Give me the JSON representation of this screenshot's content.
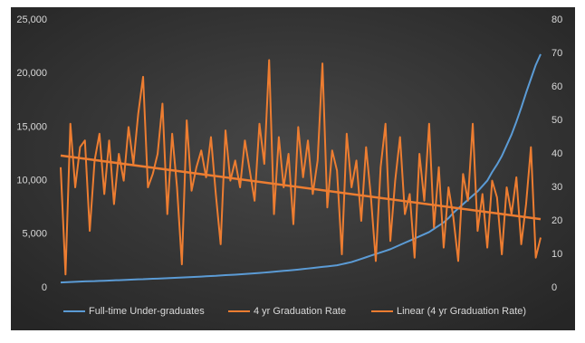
{
  "chart_data": {
    "type": "line",
    "grid": false,
    "legend": "bottom",
    "ylim": [
      0,
      25000
    ],
    "yticks": [
      0,
      {
        "value": 5000,
        "label": "5,000"
      },
      {
        "value": 10000,
        "label": "10,000"
      },
      {
        "value": 15000,
        "label": "15,000"
      },
      {
        "value": 20000,
        "label": "20,000"
      },
      {
        "value": 25000,
        "label": "25,000"
      }
    ],
    "y2lim": [
      0,
      80
    ],
    "y2ticks": [
      0,
      10,
      20,
      30,
      40,
      50,
      60,
      70,
      80
    ],
    "series": [
      {
        "name": "Full-time Under-graduates",
        "color": "#5b9bd5",
        "axis": "y",
        "values": [
          500,
          520,
          540,
          560,
          580,
          600,
          610,
          620,
          640,
          660,
          680,
          700,
          710,
          730,
          750,
          770,
          790,
          800,
          820,
          840,
          860,
          880,
          900,
          920,
          940,
          960,
          980,
          1000,
          1020,
          1050,
          1080,
          1100,
          1120,
          1150,
          1180,
          1200,
          1230,
          1260,
          1290,
          1320,
          1350,
          1380,
          1420,
          1460,
          1500,
          1540,
          1580,
          1620,
          1660,
          1700,
          1750,
          1800,
          1850,
          1900,
          1950,
          2000,
          2050,
          2100,
          2200,
          2300,
          2400,
          2550,
          2700,
          2850,
          3000,
          3150,
          3300,
          3450,
          3600,
          3800,
          4000,
          4200,
          4400,
          4600,
          4800,
          5000,
          5200,
          5500,
          5800,
          6100,
          6500,
          7000,
          7400,
          7800,
          8200,
          8600,
          9000,
          9500,
          10000,
          10800,
          11500,
          12300,
          13300,
          14300,
          15500,
          16800,
          18200,
          19500,
          20800,
          21800
        ]
      },
      {
        "name": "4 yr Graduation Rate",
        "color": "#ed7d31",
        "axis": "y2",
        "values": [
          36,
          4,
          49,
          30,
          42,
          44,
          17,
          38,
          46,
          28,
          44,
          25,
          40,
          32,
          48,
          37,
          52,
          63,
          30,
          34,
          40,
          55,
          22,
          46,
          30,
          7,
          50,
          29,
          36,
          41,
          33,
          45,
          28,
          13,
          47,
          32,
          38,
          30,
          44,
          35,
          26,
          49,
          37,
          68,
          22,
          45,
          30,
          40,
          19,
          48,
          33,
          44,
          28,
          38,
          67,
          24,
          41,
          35,
          10,
          46,
          30,
          38,
          20,
          42,
          27,
          8,
          36,
          49,
          14,
          32,
          45,
          22,
          28,
          9,
          40,
          26,
          49,
          18,
          36,
          12,
          30,
          21,
          8,
          34,
          26,
          49,
          17,
          28,
          12,
          32,
          27,
          10,
          30,
          22,
          33,
          13,
          25,
          42,
          9,
          15
        ]
      }
    ],
    "trendline": {
      "name": "Linear (4 yr Graduation Rate)",
      "color": "#ed7d31",
      "axis": "y2",
      "values": [
        39.5,
        20.5
      ]
    }
  }
}
